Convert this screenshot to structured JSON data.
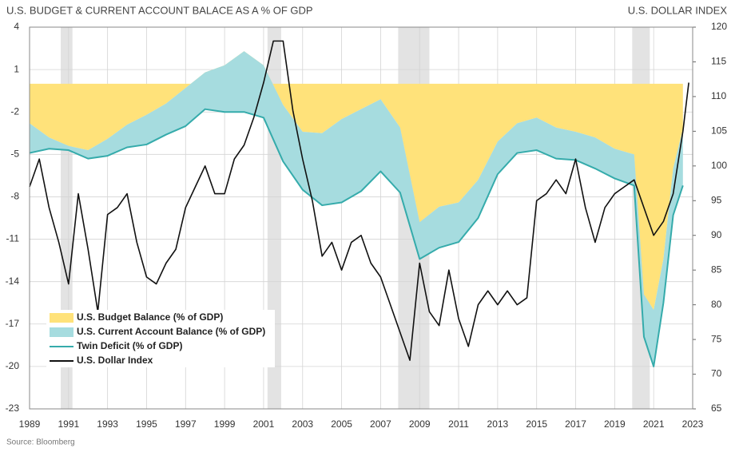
{
  "chart_data": {
    "type": "area",
    "title": "U.S. BUDGET & CURRENT ACCOUNT BALACE AS A % OF GDP",
    "y2_title": "U.S. DOLLAR INDEX",
    "source": "Source: Bloomberg",
    "xlim": [
      1989,
      2023
    ],
    "xticks": [
      1989,
      1991,
      1993,
      1995,
      1997,
      1999,
      2001,
      2003,
      2005,
      2007,
      2009,
      2011,
      2013,
      2015,
      2017,
      2019,
      2021,
      2023
    ],
    "ylim": [
      -23,
      4
    ],
    "yticks": [
      4,
      1,
      -2,
      -5,
      -8,
      -11,
      -14,
      -17,
      -20,
      -23
    ],
    "y2lim": [
      65,
      120
    ],
    "y2ticks": [
      65,
      70,
      75,
      80,
      85,
      90,
      95,
      100,
      105,
      110,
      115,
      120
    ],
    "grid": true,
    "legend": "lower-left",
    "shaded_periods": [
      [
        1990.6,
        1991.2
      ],
      [
        2001.2,
        2001.9
      ],
      [
        2007.9,
        2009.5
      ],
      [
        2019.9,
        2020.8
      ]
    ],
    "x": [
      1989,
      1990,
      1991,
      1992,
      1993,
      1994,
      1995,
      1996,
      1997,
      1998,
      1999,
      2000,
      2001,
      2002,
      2003,
      2004,
      2005,
      2006,
      2007,
      2008,
      2009,
      2010,
      2011,
      2012,
      2013,
      2014,
      2015,
      2016,
      2017,
      2018,
      2019,
      2020,
      2020.5,
      2021,
      2021.5,
      2022,
      2022.5
    ],
    "series": [
      {
        "name": "U.S. Budget Balance (% of GDP)",
        "kind": "area",
        "color": "#ffe27a",
        "values": [
          -2.8,
          -3.8,
          -4.4,
          -4.7,
          -3.9,
          -2.9,
          -2.2,
          -1.4,
          -0.3,
          0.8,
          1.3,
          2.3,
          1.3,
          -1.5,
          -3.4,
          -3.5,
          -2.5,
          -1.8,
          -1.1,
          -3.1,
          -9.8,
          -8.7,
          -8.4,
          -6.8,
          -4.1,
          -2.8,
          -2.4,
          -3.1,
          -3.4,
          -3.8,
          -4.6,
          -5.0,
          -14.9,
          -16.0,
          -12.4,
          -6.0,
          -3.2
        ]
      },
      {
        "name": "U.S. Current Account Balance (% of GDP)",
        "kind": "area",
        "color": "#a6dcdf",
        "values": [
          -2.1,
          -0.8,
          -0.3,
          -0.6,
          -1.2,
          -1.6,
          -2.1,
          -2.2,
          -2.7,
          -2.6,
          -3.3,
          -4.3,
          -3.7,
          -4.0,
          -4.1,
          -5.1,
          -5.9,
          -5.8,
          -5.1,
          -4.6,
          -2.6,
          -2.9,
          -2.8,
          -2.7,
          -2.3,
          -2.1,
          -2.3,
          -2.2,
          -2.0,
          -2.2,
          -2.1,
          -2.2,
          -3.0,
          -4.0,
          -3.1,
          -3.3,
          -4.0
        ]
      },
      {
        "name": "Twin Deficit (% of GDP)",
        "kind": "line",
        "color": "#35abab",
        "values": [
          -4.9,
          -4.6,
          -4.7,
          -5.3,
          -5.1,
          -4.5,
          -4.3,
          -3.6,
          -3.0,
          -1.8,
          -2.0,
          -2.0,
          -2.4,
          -5.5,
          -7.5,
          -8.6,
          -8.4,
          -7.6,
          -6.2,
          -7.7,
          -12.4,
          -11.6,
          -11.2,
          -9.5,
          -6.4,
          -4.9,
          -4.7,
          -5.3,
          -5.4,
          -6.0,
          -6.7,
          -7.2,
          -17.9,
          -20.0,
          -15.5,
          -9.3,
          -7.2
        ]
      },
      {
        "name": "U.S. Dollar Index",
        "kind": "line",
        "color": "#111111",
        "axis": "y2",
        "x": [
          1989,
          1989.5,
          1990,
          1990.5,
          1991,
          1991.5,
          1992,
          1992.5,
          1993,
          1993.5,
          1994,
          1994.5,
          1995,
          1995.5,
          1996,
          1996.5,
          1997,
          1997.5,
          1998,
          1998.5,
          1999,
          1999.5,
          2000,
          2000.5,
          2001,
          2001.5,
          2002,
          2002.5,
          2003,
          2003.5,
          2004,
          2004.5,
          2005,
          2005.5,
          2006,
          2006.5,
          2007,
          2007.5,
          2008,
          2008.5,
          2009,
          2009.5,
          2010,
          2010.5,
          2011,
          2011.5,
          2012,
          2012.5,
          2013,
          2013.5,
          2014,
          2014.5,
          2015,
          2015.5,
          2016,
          2016.5,
          2017,
          2017.5,
          2018,
          2018.5,
          2019,
          2019.5,
          2020,
          2020.5,
          2021,
          2021.5,
          2022,
          2022.5,
          2022.8
        ],
        "values": [
          97,
          101,
          94,
          89,
          83,
          96,
          88,
          79,
          93,
          94,
          96,
          89,
          84,
          83,
          86,
          88,
          94,
          97,
          100,
          96,
          96,
          101,
          103,
          107,
          112,
          118,
          118,
          108,
          101,
          95,
          87,
          89,
          85,
          89,
          90,
          86,
          84,
          80,
          76,
          72,
          86,
          79,
          77,
          85,
          78,
          74,
          80,
          82,
          80,
          82,
          80,
          81,
          95,
          96,
          98,
          96,
          101,
          94,
          89,
          94,
          96,
          97,
          98,
          94,
          90,
          92,
          96,
          105,
          112
        ]
      }
    ]
  }
}
